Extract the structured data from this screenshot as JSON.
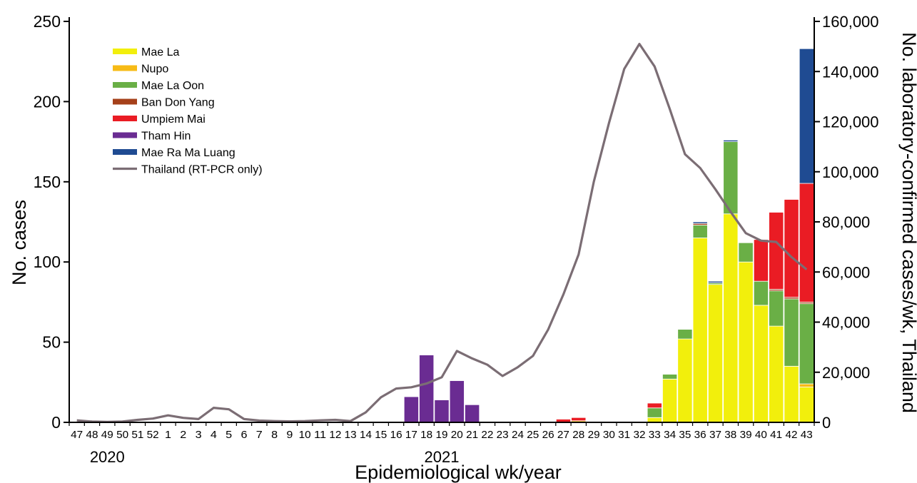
{
  "chart_data": {
    "type": "bar",
    "xlabel": "Epidemiological wk/year",
    "ylabel": "No. cases",
    "y2label": "No. laboratory-confirmed cases/wk, Thailand",
    "ylim": [
      0,
      250
    ],
    "y2lim": [
      0,
      160000
    ],
    "yticks": [
      "0",
      "50",
      "100",
      "150",
      "200",
      "250"
    ],
    "y2ticks": [
      "0",
      "20,000",
      "40,000",
      "60,000",
      "80,000",
      "100,000",
      "120,000",
      "140,000",
      "160,000"
    ],
    "categories": [
      "47",
      "48",
      "49",
      "50",
      "51",
      "52",
      "1",
      "2",
      "3",
      "4",
      "5",
      "6",
      "7",
      "8",
      "9",
      "10",
      "11",
      "12",
      "13",
      "14",
      "15",
      "16",
      "17",
      "18",
      "19",
      "20",
      "21",
      "22",
      "23",
      "24",
      "25",
      "26",
      "27",
      "28",
      "29",
      "30",
      "31",
      "32",
      "33",
      "34",
      "35",
      "36",
      "37",
      "38",
      "39",
      "40",
      "41",
      "42",
      "43"
    ],
    "year_labels": [
      {
        "label": "2020",
        "at_category_index": 2
      },
      {
        "label": "2021",
        "at_category_index": 24
      }
    ],
    "stacked": true,
    "legend_position": "top-left",
    "series": [
      {
        "name": "Mae La",
        "color": "#f2ef0c",
        "values": [
          0,
          0,
          0,
          0,
          0,
          0,
          0,
          0,
          0,
          0,
          0,
          0,
          0,
          0,
          0,
          0,
          0,
          0,
          0,
          0,
          0,
          0,
          0,
          0,
          0,
          0,
          0,
          0,
          0,
          0,
          0,
          0,
          0,
          0,
          0,
          0,
          0,
          0,
          3,
          27,
          52,
          115,
          86,
          130,
          100,
          73,
          60,
          35,
          22
        ]
      },
      {
        "name": "Nupo",
        "color": "#f7bb16",
        "values": [
          0,
          0,
          0,
          0,
          0,
          0,
          0,
          0,
          0,
          0,
          0,
          0,
          0,
          0,
          0,
          0,
          0,
          0,
          0,
          0,
          0,
          0,
          0,
          0,
          0,
          0,
          0,
          0,
          0,
          0,
          0,
          0,
          0,
          1,
          0,
          0,
          0,
          0,
          0,
          0,
          0,
          0,
          0,
          0,
          0,
          0,
          0,
          0,
          2
        ]
      },
      {
        "name": "Mae La Oon",
        "color": "#6aaf46",
        "values": [
          0,
          0,
          0,
          0,
          0,
          0,
          0,
          0,
          0,
          0,
          0,
          0,
          0,
          0,
          0,
          0,
          0,
          0,
          0,
          0,
          0,
          0,
          0,
          0,
          0,
          0,
          0,
          0,
          0,
          0,
          0,
          0,
          0,
          0,
          0,
          0,
          0,
          0,
          6,
          3,
          6,
          8,
          1,
          45,
          12,
          15,
          22,
          42,
          50
        ]
      },
      {
        "name": "Ban Don Yang",
        "color": "#a5401a",
        "values": [
          0,
          0,
          0,
          0,
          0,
          0,
          0,
          0,
          0,
          0,
          0,
          0,
          0,
          0,
          0,
          0,
          0,
          0,
          0,
          0,
          0,
          0,
          0,
          0,
          0,
          0,
          0,
          0,
          0,
          0,
          0,
          0,
          0,
          0,
          0,
          0,
          0,
          0,
          0,
          0,
          0,
          1,
          0,
          0,
          0,
          0,
          1,
          1,
          1
        ]
      },
      {
        "name": "Umpiem Mai",
        "color": "#ea1c24",
        "values": [
          0,
          0,
          0,
          0,
          0,
          0,
          0,
          0,
          0,
          0,
          0,
          0,
          0,
          0,
          0,
          0,
          0,
          0,
          0,
          0,
          0,
          0,
          0,
          0,
          0,
          0,
          0,
          0,
          0,
          0,
          0,
          0,
          2,
          2,
          0,
          0,
          0,
          0,
          3,
          0,
          0,
          0,
          0,
          0,
          0,
          26,
          48,
          61,
          74
        ]
      },
      {
        "name": "Tham Hin",
        "color": "#6a2c92",
        "values": [
          0,
          0,
          0,
          0,
          0,
          0,
          0,
          0,
          0,
          0,
          0,
          0,
          0,
          0,
          0,
          0,
          0,
          0,
          0,
          0,
          0,
          0,
          16,
          42,
          14,
          26,
          11,
          0,
          0,
          0,
          0,
          0,
          0,
          0,
          0,
          0,
          0,
          0,
          0,
          0,
          0,
          0,
          0,
          0,
          0,
          0,
          0,
          0,
          0
        ]
      },
      {
        "name": "Mae Ra Ma Luang",
        "color": "#1f4b92",
        "values": [
          0,
          0,
          0,
          0,
          0,
          0,
          0,
          0,
          0,
          0,
          0,
          0,
          0,
          0,
          0,
          0,
          0,
          0,
          0,
          0,
          0,
          0,
          0,
          0,
          0,
          0,
          0,
          0,
          0,
          0,
          0,
          0,
          0,
          0,
          0,
          0,
          0,
          0,
          0,
          0,
          0,
          1,
          1,
          1,
          0,
          0,
          0,
          0,
          84
        ]
      },
      {
        "name": "Thailand (RT-PCR only)",
        "type": "line",
        "axis": "y2",
        "color": "#7b6d74",
        "values": [
          800,
          300,
          200,
          300,
          1000,
          1500,
          2800,
          1800,
          1300,
          5800,
          5200,
          1300,
          700,
          500,
          400,
          500,
          800,
          1000,
          500,
          4000,
          10000,
          13500,
          14000,
          15500,
          18000,
          28500,
          25500,
          23000,
          18500,
          22000,
          26500,
          37000,
          51000,
          67000,
          96000,
          119500,
          141000,
          151000,
          142000,
          125000,
          107000,
          101500,
          93000,
          84000,
          75500,
          72500,
          72000,
          66000,
          61000
        ]
      }
    ]
  }
}
